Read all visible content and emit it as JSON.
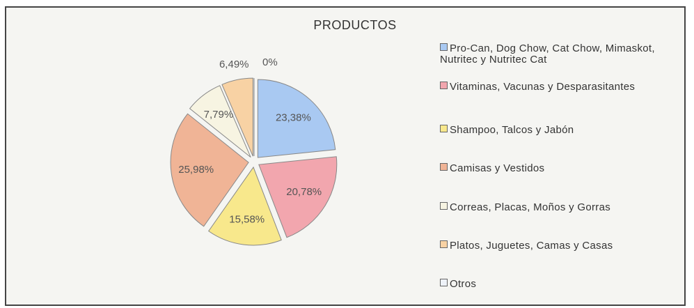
{
  "chart_data": {
    "type": "pie",
    "title": "PRODUCTOS",
    "categories": [
      "Pro-Can, Dog Chow, Cat Chow, Mimaskot, Nutritec y Nutritec Cat",
      "Vitaminas, Vacunas y Desparasitantes",
      "Shampoo, Talcos y Jabón",
      "Camisas y Vestidos",
      "Correas, Placas, Moños y Gorras",
      "Platos, Juguetes, Camas y Casas",
      "Otros"
    ],
    "values": [
      23.38,
      20.78,
      15.58,
      25.98,
      7.79,
      6.49,
      0
    ],
    "value_labels": [
      "23,38%",
      "20,78%",
      "15,58%",
      "25,98%",
      "7,79%",
      "6,49%",
      "0%"
    ],
    "colors": [
      "#a9c9f2",
      "#f2a6ae",
      "#f8e88c",
      "#f0b496",
      "#f7f4e2",
      "#f8d2a4",
      "#eef2f8"
    ],
    "legend": "right"
  }
}
